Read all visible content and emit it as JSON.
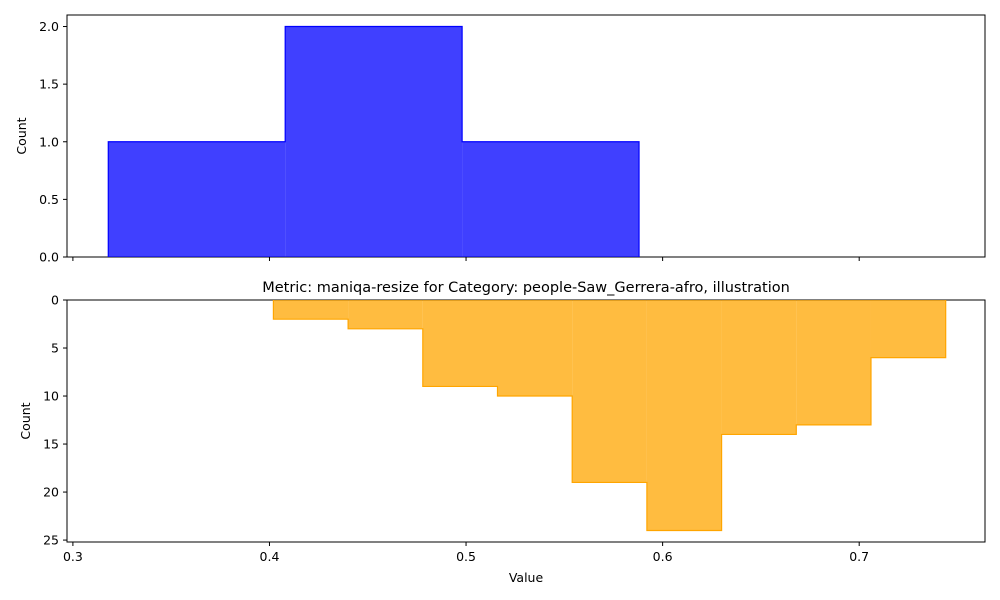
{
  "chart_data": [
    {
      "type": "histogram",
      "title": "",
      "xlabel": "",
      "ylabel": "Count",
      "xlim": [
        0.297,
        0.764
      ],
      "ylim": [
        0,
        2.1
      ],
      "xticks": [
        0.3,
        0.4,
        0.5,
        0.6,
        0.7
      ],
      "yticks": [
        0.0,
        0.5,
        1.0,
        1.5,
        2.0
      ],
      "ytick_labels": [
        "0.0",
        "0.5",
        "1.0",
        "1.5",
        "2.0"
      ],
      "show_x_tick_labels": false,
      "inverted_y": false,
      "color": "#0000ff",
      "bin_edges": [
        0.318,
        0.408,
        0.498,
        0.588
      ],
      "counts": [
        1,
        2,
        1
      ]
    },
    {
      "type": "histogram",
      "title": "Metric: maniqa-resize for Category: people-Saw_Gerrera-afro, illustration",
      "xlabel": "Value",
      "ylabel": "Count",
      "xlim": [
        0.297,
        0.764
      ],
      "ylim": [
        0,
        25.2
      ],
      "xticks": [
        0.3,
        0.4,
        0.5,
        0.6,
        0.7
      ],
      "xtick_labels": [
        "0.3",
        "0.4",
        "0.5",
        "0.6",
        "0.7"
      ],
      "yticks": [
        0,
        5,
        10,
        15,
        20,
        25
      ],
      "ytick_labels": [
        "0",
        "5",
        "10",
        "15",
        "20",
        "25"
      ],
      "show_x_tick_labels": true,
      "inverted_y": true,
      "color": "#ffa500",
      "bin_edges": [
        0.402,
        0.44,
        0.478,
        0.516,
        0.554,
        0.592,
        0.63,
        0.668,
        0.706,
        0.744
      ],
      "counts": [
        2,
        3,
        9,
        10,
        19,
        24,
        14,
        13,
        6
      ]
    }
  ]
}
